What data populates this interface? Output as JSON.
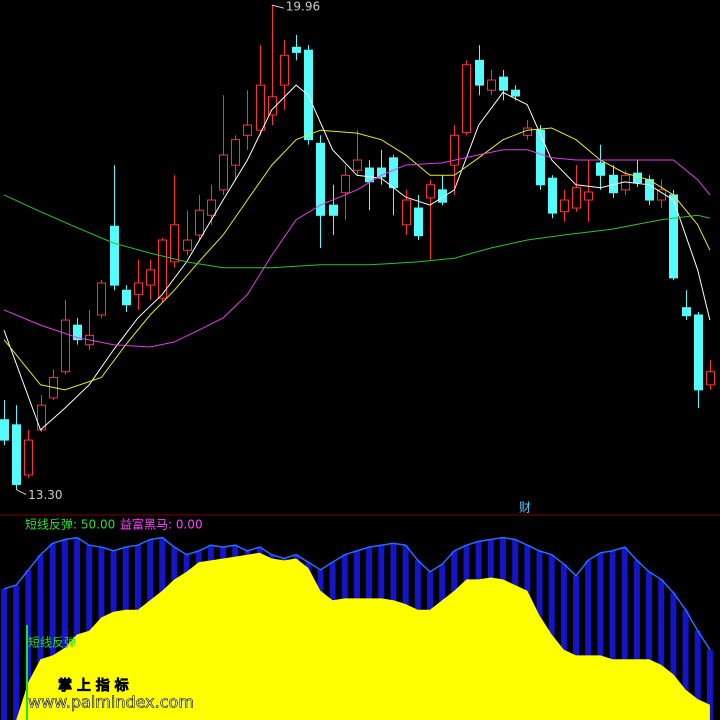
{
  "chart_data": [
    {
      "type": "candlestick",
      "xlim": [
        -0.33,
        58.83
      ],
      "ylim": [
        12.95,
        20.03
      ],
      "up_color": "#ff3232",
      "down_color": "#54fcfc",
      "high_label": "19.96",
      "low_label": "13.30",
      "marker": "财",
      "open": [
        14.26,
        14.19,
        13.5,
        14.12,
        14.56,
        14.92,
        15.56,
        15.29,
        15.7,
        16.92,
        16.04,
        15.98,
        16.11,
        15.93,
        16.43,
        16.59,
        16.8,
        17.07,
        17.42,
        17.76,
        18.17,
        18.24,
        18.45,
        18.86,
        19.38,
        19.34,
        18.06,
        17.21,
        17.38,
        17.69,
        17.72,
        17.72,
        17.86,
        16.94,
        17.17,
        17.31,
        17.42,
        17.76,
        18.21,
        19.2,
        18.79,
        18.97,
        18.79,
        18.17,
        18.24,
        17.58,
        17.12,
        17.17,
        17.28,
        17.79,
        17.62,
        17.42,
        17.65,
        17.56,
        17.28,
        17.35,
        15.8,
        15.7,
        14.74
      ],
      "close": [
        13.98,
        13.37,
        13.98,
        14.46,
        14.84,
        15.63,
        15.36,
        15.42,
        16.14,
        16.11,
        15.84,
        16.14,
        16.32,
        16.73,
        16.94,
        16.73,
        17.14,
        17.28,
        17.9,
        18.11,
        18.31,
        18.86,
        18.7,
        19.27,
        19.31,
        18.11,
        17.07,
        17.07,
        17.62,
        17.83,
        17.53,
        17.6,
        17.45,
        17.28,
        16.79,
        17.49,
        17.25,
        18.17,
        19.14,
        18.86,
        18.93,
        18.79,
        18.71,
        18.27,
        17.49,
        17.1,
        17.28,
        17.45,
        17.39,
        17.62,
        17.38,
        17.62,
        17.52,
        17.28,
        17.42,
        16.21,
        15.69,
        14.67,
        14.92
      ],
      "high": [
        14.53,
        14.46,
        14.12,
        14.6,
        14.95,
        15.91,
        15.66,
        15.77,
        16.18,
        17.76,
        16.11,
        16.46,
        16.46,
        16.76,
        17.62,
        17.14,
        17.35,
        17.49,
        18.72,
        18.17,
        18.79,
        19.41,
        19.96,
        19.48,
        19.55,
        19.41,
        18.17,
        17.49,
        17.76,
        18.24,
        17.83,
        17.97,
        17.9,
        17.42,
        17.35,
        17.56,
        17.62,
        18.31,
        19.2,
        19.41,
        19.07,
        19.07,
        18.86,
        18.38,
        18.31,
        17.62,
        17.42,
        17.76,
        17.83,
        18.04,
        17.76,
        17.69,
        17.83,
        17.62,
        17.56,
        17.42,
        16.04,
        15.74,
        15.08
      ],
      "low": [
        13.91,
        13.3,
        13.46,
        14.09,
        14.53,
        14.88,
        15.29,
        15.22,
        15.66,
        16.04,
        15.74,
        15.77,
        15.91,
        15.88,
        16.35,
        16.52,
        16.73,
        16.94,
        17.35,
        17.56,
        17.97,
        18.17,
        18.31,
        18.52,
        19.2,
        18.04,
        16.62,
        16.8,
        17.01,
        17.62,
        17.14,
        17.49,
        17.07,
        16.8,
        16.73,
        16.46,
        17.21,
        17.35,
        18.17,
        18.72,
        18.72,
        18.65,
        18.65,
        18.11,
        17.42,
        17.03,
        16.98,
        17.12,
        16.98,
        17.42,
        17.31,
        17.35,
        17.46,
        17.21,
        17.17,
        16.18,
        15.63,
        14.42,
        14.67
      ],
      "series": [
        {
          "color": "#ffffff",
          "x": [
            0,
            3,
            5,
            7,
            9,
            11,
            13,
            15,
            18,
            20,
            22,
            24,
            25,
            27,
            29,
            31,
            33,
            35,
            37,
            39,
            41,
            43,
            45,
            47,
            49,
            51,
            53,
            55,
            57,
            58
          ],
          "values": [
            15.49,
            14.12,
            14.42,
            14.74,
            15.22,
            15.66,
            15.98,
            16.43,
            17.28,
            17.83,
            18.52,
            18.86,
            18.72,
            17.97,
            17.62,
            17.58,
            17.32,
            17.21,
            17.42,
            18.31,
            18.76,
            18.59,
            17.83,
            17.49,
            17.45,
            17.53,
            17.49,
            17.28,
            16.32,
            15.63
          ]
        },
        {
          "color": "#e8e830",
          "x": [
            0,
            3,
            5,
            8,
            10,
            12,
            14,
            16,
            18,
            20,
            22,
            24,
            26,
            29,
            31,
            33,
            35,
            37,
            39,
            41,
            43,
            45,
            47,
            49,
            51,
            53,
            55,
            57,
            58
          ],
          "values": [
            15.36,
            14.74,
            14.67,
            14.84,
            15.29,
            15.7,
            16.04,
            16.43,
            16.8,
            17.28,
            17.76,
            18.11,
            18.24,
            18.2,
            18.11,
            17.9,
            17.62,
            17.62,
            17.86,
            18.11,
            18.24,
            18.27,
            18.11,
            17.83,
            17.65,
            17.56,
            17.35,
            16.94,
            16.59
          ]
        },
        {
          "color": "#e040e0",
          "x": [
            0,
            3,
            6,
            9,
            12,
            14,
            16,
            18,
            20,
            22,
            24,
            26,
            29,
            31,
            33,
            36,
            39,
            41,
            43,
            45,
            47,
            50,
            53,
            55,
            57,
            58
          ],
          "values": [
            15.77,
            15.56,
            15.39,
            15.29,
            15.26,
            15.33,
            15.49,
            15.66,
            15.98,
            16.52,
            17.01,
            17.21,
            17.42,
            17.62,
            17.76,
            17.79,
            17.9,
            17.97,
            17.97,
            17.86,
            17.83,
            17.83,
            17.83,
            17.83,
            17.56,
            17.35
          ]
        },
        {
          "color": "#30c030",
          "x": [
            0,
            3,
            6,
            9,
            12,
            15,
            18,
            22,
            26,
            30,
            34,
            37,
            40,
            43,
            46,
            50,
            54,
            57,
            58
          ],
          "values": [
            17.35,
            17.12,
            16.9,
            16.69,
            16.55,
            16.43,
            16.35,
            16.35,
            16.39,
            16.39,
            16.43,
            16.48,
            16.62,
            16.73,
            16.8,
            16.88,
            17.01,
            17.07,
            17.03
          ]
        }
      ]
    },
    {
      "type": "area",
      "xlim": [
        -0.33,
        58.83
      ],
      "ylim": [
        0,
        100
      ],
      "legend": [
        {
          "text": "短线反弹: 50.00",
          "color": "#33dd33"
        },
        {
          "text": "益富黑马: 0.00",
          "color": "#ff44ff"
        }
      ],
      "signal_label": "短线反弹",
      "watermark": "掌 上 指 标",
      "url": "www.palmindex.com",
      "series": [
        {
          "color": "#1414c8",
          "line_color": "#2a6cff",
          "values": [
            69,
            71,
            79,
            87,
            93,
            95,
            96,
            92,
            91,
            89,
            91,
            92,
            95,
            96,
            91,
            87,
            89,
            92,
            91,
            92,
            89,
            91,
            87,
            85,
            87,
            83,
            79,
            83,
            87,
            89,
            91,
            92,
            93,
            92,
            84,
            78,
            82,
            89,
            92,
            94,
            95,
            96,
            95,
            92,
            89,
            87,
            82,
            76,
            84,
            88,
            89,
            91,
            84,
            78,
            74,
            67,
            58,
            47,
            37
          ]
        },
        {
          "color": "#ffff00",
          "values": [
            0,
            0,
            20,
            32,
            34,
            38,
            45,
            47,
            54,
            57,
            58,
            58,
            63,
            68,
            74,
            78,
            83,
            84,
            85,
            86,
            87,
            88,
            85,
            84,
            85,
            80,
            68,
            63,
            64,
            64,
            64,
            64,
            63,
            61,
            58,
            58,
            63,
            68,
            74,
            74,
            75,
            74,
            71,
            68,
            55,
            45,
            37,
            34,
            34,
            34,
            32,
            32,
            32,
            32,
            29,
            24,
            16,
            11,
            8
          ]
        }
      ]
    }
  ]
}
